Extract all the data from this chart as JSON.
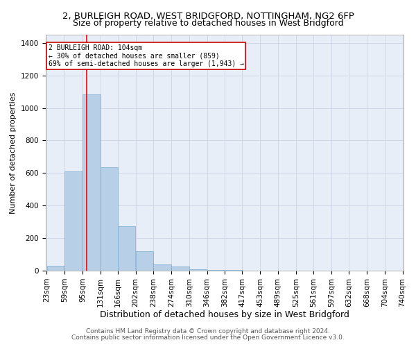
{
  "title1": "2, BURLEIGH ROAD, WEST BRIDGFORD, NOTTINGHAM, NG2 6FP",
  "title2": "Size of property relative to detached houses in West Bridgford",
  "xlabel": "Distribution of detached houses by size in West Bridgford",
  "ylabel": "Number of detached properties",
  "bar_color": "#b8cfe8",
  "bar_edge_color": "#7aabce",
  "grid_color": "#d0d8e8",
  "background_color": "#e8eef8",
  "annotation_text_line1": "2 BURLEIGH ROAD: 104sqm",
  "annotation_text_line2": "← 30% of detached houses are smaller (859)",
  "annotation_text_line3": "69% of semi-detached houses are larger (1,943) →",
  "red_line_x": 104,
  "bins": [
    23,
    59,
    95,
    131,
    166,
    202,
    238,
    274,
    310,
    346,
    382,
    417,
    453,
    489,
    525,
    561,
    597,
    632,
    668,
    704,
    740
  ],
  "bar_heights": [
    30,
    610,
    1085,
    635,
    275,
    120,
    40,
    25,
    10,
    5,
    3,
    2,
    1,
    0,
    0,
    0,
    0,
    0,
    0,
    0
  ],
  "ylim": [
    0,
    1450
  ],
  "yticks": [
    0,
    200,
    400,
    600,
    800,
    1000,
    1200,
    1400
  ],
  "footnote1": "Contains HM Land Registry data © Crown copyright and database right 2024.",
  "footnote2": "Contains public sector information licensed under the Open Government Licence v3.0.",
  "title1_fontsize": 9.5,
  "title2_fontsize": 9,
  "xlabel_fontsize": 9,
  "ylabel_fontsize": 8,
  "tick_fontsize": 7.5,
  "footnote_fontsize": 6.5
}
